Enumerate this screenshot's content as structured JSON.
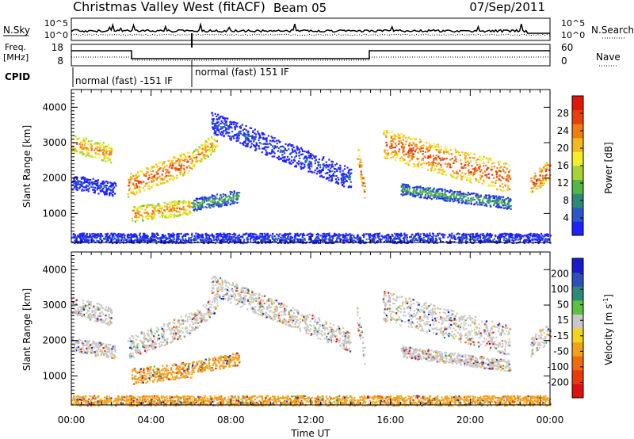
{
  "header": {
    "station": "Christmas Valley West (fitACF)",
    "beam": "Beam 05",
    "date": "07/Sep/2011"
  },
  "strip_labels": {
    "nsky": "N.Sky",
    "nsearch": "N.Search",
    "freq_line1": "Freq.",
    "freq_line2": "[MHz]",
    "nave": "Nave",
    "cpid": "CPID",
    "nsky_ticks": [
      "10^5",
      "10^0"
    ],
    "nsearch_ticks": [
      "10^5",
      "10^0"
    ],
    "freq_ticks": [
      "18",
      "8"
    ],
    "nave_ticks": [
      "60",
      "0"
    ]
  },
  "cpid_segments": [
    {
      "label": "normal (fast) -151 IF",
      "start_hour": 0,
      "end_hour": 6.0
    },
    {
      "label": "normal (fast) 151 IF",
      "start_hour": 6.0,
      "end_hour": 24
    }
  ],
  "chart_data": [
    {
      "type": "heatmap",
      "name": "power",
      "ylabel": "Slant Range [km]",
      "xlabel": "Time UT",
      "xlim": [
        0,
        24
      ],
      "ylim": [
        180,
        4500
      ],
      "yticks": [
        1000,
        2000,
        3000,
        4000
      ],
      "xtick_labels": [
        "00:00",
        "04:00",
        "08:00",
        "12:00",
        "16:00",
        "20:00",
        "00:00"
      ],
      "colorbar": {
        "label": "Power [dB]",
        "ticks": [
          4,
          8,
          12,
          16,
          20,
          24,
          28
        ],
        "range": [
          0,
          32
        ],
        "colors": [
          "#1e22ff",
          "#2a58c8",
          "#2e8a78",
          "#55b347",
          "#a6d239",
          "#f0ee2d",
          "#f5b91e",
          "#f07d13",
          "#e8400c",
          "#e01808"
        ]
      }
    },
    {
      "type": "heatmap",
      "name": "velocity",
      "ylabel": "Slant Range [km]",
      "xlabel": "Time UT",
      "xlim": [
        0,
        24
      ],
      "ylim": [
        180,
        4500
      ],
      "yticks": [
        1000,
        2000,
        3000,
        4000
      ],
      "xtick_labels": [
        "00:00",
        "04:00",
        "08:00",
        "12:00",
        "16:00",
        "20:00",
        "00:00"
      ],
      "colorbar": {
        "label": "Velocity [m s",
        "label_sup": "-1",
        "label_end": "]",
        "ticks": [
          "200",
          "100",
          "50",
          "15",
          "-15",
          "-50",
          "-100",
          "-200"
        ],
        "colors": [
          "#1a1acc",
          "#2e50b8",
          "#2e8a78",
          "#5cc040",
          "#c8c8c8",
          "#f5d21e",
          "#f5a01a",
          "#f06a10",
          "#e83a0c",
          "#e01010"
        ]
      }
    }
  ],
  "xaxis": {
    "title": "Time UT"
  }
}
